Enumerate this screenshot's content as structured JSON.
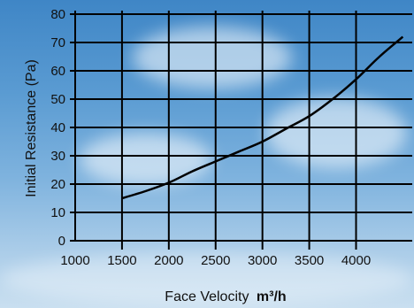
{
  "chart_data": {
    "type": "line",
    "title": "",
    "xlabel": "Face Velocity",
    "xlabel_unit": "m³/h",
    "ylabel": "Initial Resistance (Pa)",
    "xlim": [
      1000,
      4600
    ],
    "ylim": [
      0,
      80
    ],
    "x_ticks": [
      "1000",
      "1500",
      "2000",
      "2500",
      "3000",
      "3500",
      "4000"
    ],
    "y_ticks": [
      "0",
      "10",
      "20",
      "30",
      "40",
      "50",
      "60",
      "70",
      "80"
    ],
    "grid": true,
    "series": [
      {
        "color": "#000000",
        "x": [
          1500,
          1750,
          2000,
          2250,
          2500,
          2750,
          3000,
          3250,
          3500,
          3750,
          4000,
          4250,
          4500
        ],
        "y": [
          15,
          17.5,
          20.5,
          24.5,
          28,
          31.5,
          35,
          39.5,
          44,
          50,
          57,
          65,
          72
        ]
      }
    ]
  }
}
